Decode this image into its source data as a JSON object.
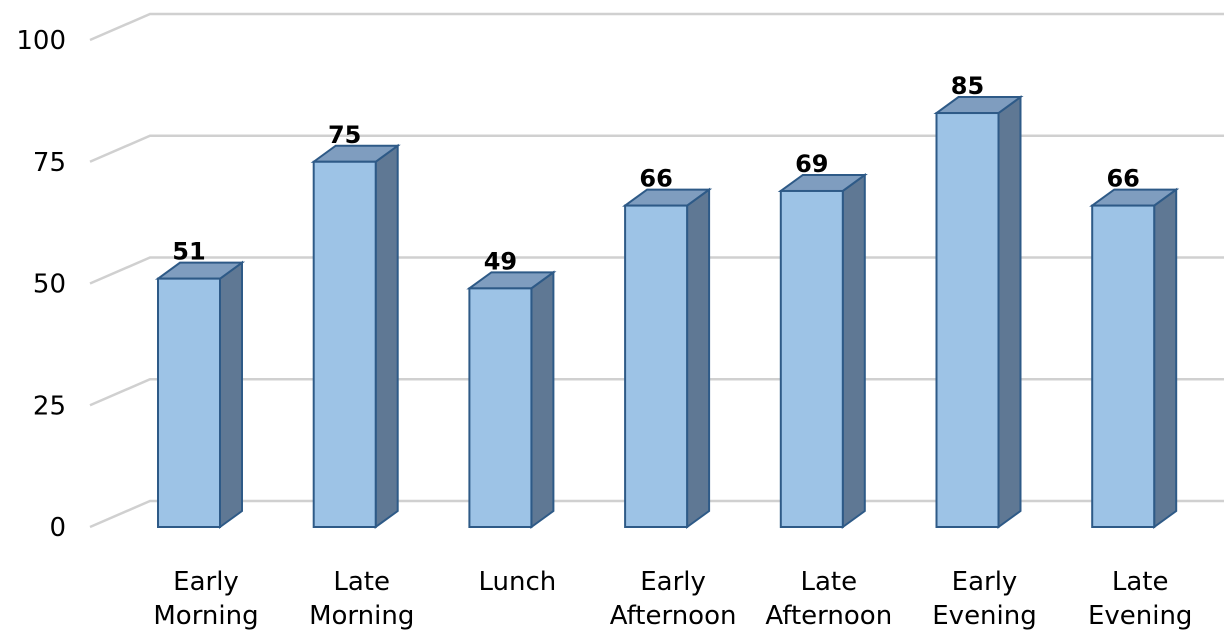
{
  "chart_data": {
    "type": "bar",
    "style": "3d-column",
    "title": "",
    "xlabel": "",
    "ylabel": "",
    "ylim": [
      0,
      100
    ],
    "yticks": [
      0,
      25,
      50,
      75,
      100
    ],
    "grid": true,
    "legend": "none",
    "categories": [
      [
        "Early",
        "Morning"
      ],
      [
        "Late",
        "Morning"
      ],
      [
        "Lunch"
      ],
      [
        "Early",
        "Afternoon"
      ],
      [
        "Late",
        "Afternoon"
      ],
      [
        "Early",
        "Evening"
      ],
      [
        "Late",
        "Evening"
      ]
    ],
    "values": [
      51,
      75,
      49,
      66,
      69,
      85,
      66
    ],
    "colors": {
      "bar_front": "#9dc3e6",
      "bar_top": "#7f9dbf",
      "bar_side": "#5f7894",
      "bar_outline": "#2e5a87",
      "grid": "#d0d0d0"
    }
  }
}
